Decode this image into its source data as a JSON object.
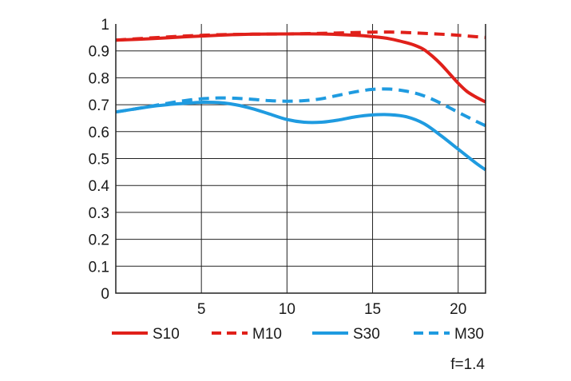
{
  "chart_data": {
    "type": "line",
    "title": "",
    "xlabel": "",
    "ylabel": "",
    "xlim": [
      0,
      21.6
    ],
    "ylim": [
      0,
      1
    ],
    "grid": true,
    "x_ticks": [
      5,
      10,
      15,
      20
    ],
    "x_tick_labels": [
      "5",
      "10",
      "15",
      "20"
    ],
    "y_ticks": [
      0,
      0.1,
      0.2,
      0.3,
      0.4,
      0.5,
      0.6,
      0.7,
      0.8,
      0.9,
      1
    ],
    "y_tick_labels": [
      "0",
      "0.1",
      "0.2",
      "0.3",
      "0.4",
      "0.5",
      "0.6",
      "0.7",
      "0.8",
      "0.9",
      "1"
    ],
    "series": [
      {
        "name": "S10",
        "color": "#e0201a",
        "dash": "solid",
        "x": [
          0,
          2,
          4,
          6,
          8,
          10,
          12,
          14,
          15,
          16,
          17,
          17.5,
          18,
          18.5,
          19,
          19.5,
          20,
          20.5,
          21,
          21.6
        ],
        "y": [
          0.94,
          0.945,
          0.952,
          0.958,
          0.962,
          0.963,
          0.963,
          0.958,
          0.953,
          0.945,
          0.93,
          0.92,
          0.905,
          0.88,
          0.85,
          0.815,
          0.78,
          0.75,
          0.73,
          0.71
        ]
      },
      {
        "name": "M10",
        "color": "#e0201a",
        "dash": "dashed",
        "x": [
          0,
          2,
          4,
          6,
          8,
          10,
          12,
          14,
          16,
          18,
          19,
          20,
          21,
          21.6
        ],
        "y": [
          0.94,
          0.948,
          0.955,
          0.96,
          0.962,
          0.963,
          0.965,
          0.968,
          0.97,
          0.965,
          0.962,
          0.958,
          0.953,
          0.95
        ]
      },
      {
        "name": "S30",
        "color": "#1f9be0",
        "dash": "solid",
        "x": [
          0,
          1,
          2,
          3,
          4,
          5,
          6,
          7,
          8,
          9,
          10,
          11,
          12,
          13,
          14,
          15,
          16,
          17,
          18,
          19,
          20,
          21,
          21.6
        ],
        "y": [
          0.673,
          0.683,
          0.693,
          0.7,
          0.705,
          0.709,
          0.708,
          0.7,
          0.685,
          0.665,
          0.645,
          0.635,
          0.635,
          0.643,
          0.655,
          0.662,
          0.663,
          0.655,
          0.63,
          0.585,
          0.535,
          0.485,
          0.458
        ]
      },
      {
        "name": "M30",
        "color": "#1f9be0",
        "dash": "dashed",
        "x": [
          0,
          1,
          2,
          3,
          4,
          5,
          6,
          7,
          8,
          9,
          10,
          11,
          12,
          13,
          14,
          15,
          16,
          17,
          18,
          19,
          20,
          21,
          21.6
        ],
        "y": [
          0.673,
          0.683,
          0.694,
          0.705,
          0.715,
          0.722,
          0.725,
          0.724,
          0.72,
          0.715,
          0.713,
          0.715,
          0.722,
          0.735,
          0.748,
          0.757,
          0.758,
          0.75,
          0.733,
          0.705,
          0.672,
          0.64,
          0.622
        ]
      }
    ],
    "legend": {
      "placement": "bottom",
      "entries": [
        {
          "label": "S10",
          "color": "#e0201a",
          "dash": "solid"
        },
        {
          "label": "M10",
          "color": "#e0201a",
          "dash": "dashed"
        },
        {
          "label": "S30",
          "color": "#1f9be0",
          "dash": "solid"
        },
        {
          "label": "M30",
          "color": "#1f9be0",
          "dash": "dashed"
        }
      ]
    },
    "annotation": "f=1.4"
  }
}
